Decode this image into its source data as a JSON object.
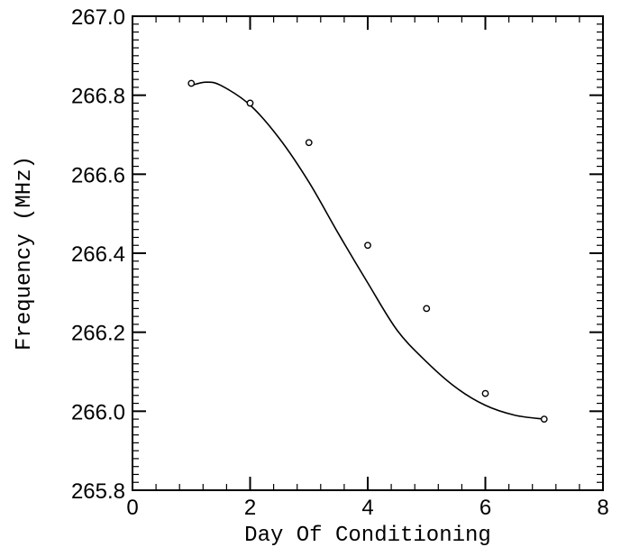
{
  "chart_data": {
    "type": "scatter",
    "xlabel": "Day Of Conditioning",
    "ylabel": "Frequency (MHz)",
    "xlim": [
      0,
      8
    ],
    "ylim": [
      265.8,
      267.0
    ],
    "xticks": [
      0,
      2,
      4,
      6,
      8
    ],
    "yticks": [
      265.8,
      266.0,
      266.2,
      266.4,
      266.6,
      266.8,
      267.0
    ],
    "xtick_labels": [
      "0",
      "2",
      "4",
      "6",
      "8"
    ],
    "ytick_labels": [
      "265.8",
      "266.0",
      "266.2",
      "266.4",
      "266.6",
      "266.8",
      "267.0"
    ],
    "grid": false,
    "series": [
      {
        "marker": "open-circle",
        "x": [
          1,
          2,
          3,
          4,
          5,
          6,
          7
        ],
        "y": [
          266.83,
          266.78,
          266.68,
          266.42,
          266.26,
          266.045,
          265.98
        ]
      }
    ],
    "fit_curve": {
      "style": "smooth-line",
      "x": [
        1,
        1.25,
        1.5,
        2,
        2.5,
        3,
        3.5,
        4,
        4.5,
        5,
        5.5,
        6,
        6.5,
        7
      ],
      "y": [
        266.825,
        266.833,
        266.825,
        266.775,
        266.69,
        266.58,
        266.45,
        266.325,
        266.205,
        266.125,
        266.06,
        266.015,
        265.99,
        265.98
      ]
    },
    "colors": {
      "axis": "#000000",
      "marker": "#000000",
      "line": "#000000"
    }
  }
}
